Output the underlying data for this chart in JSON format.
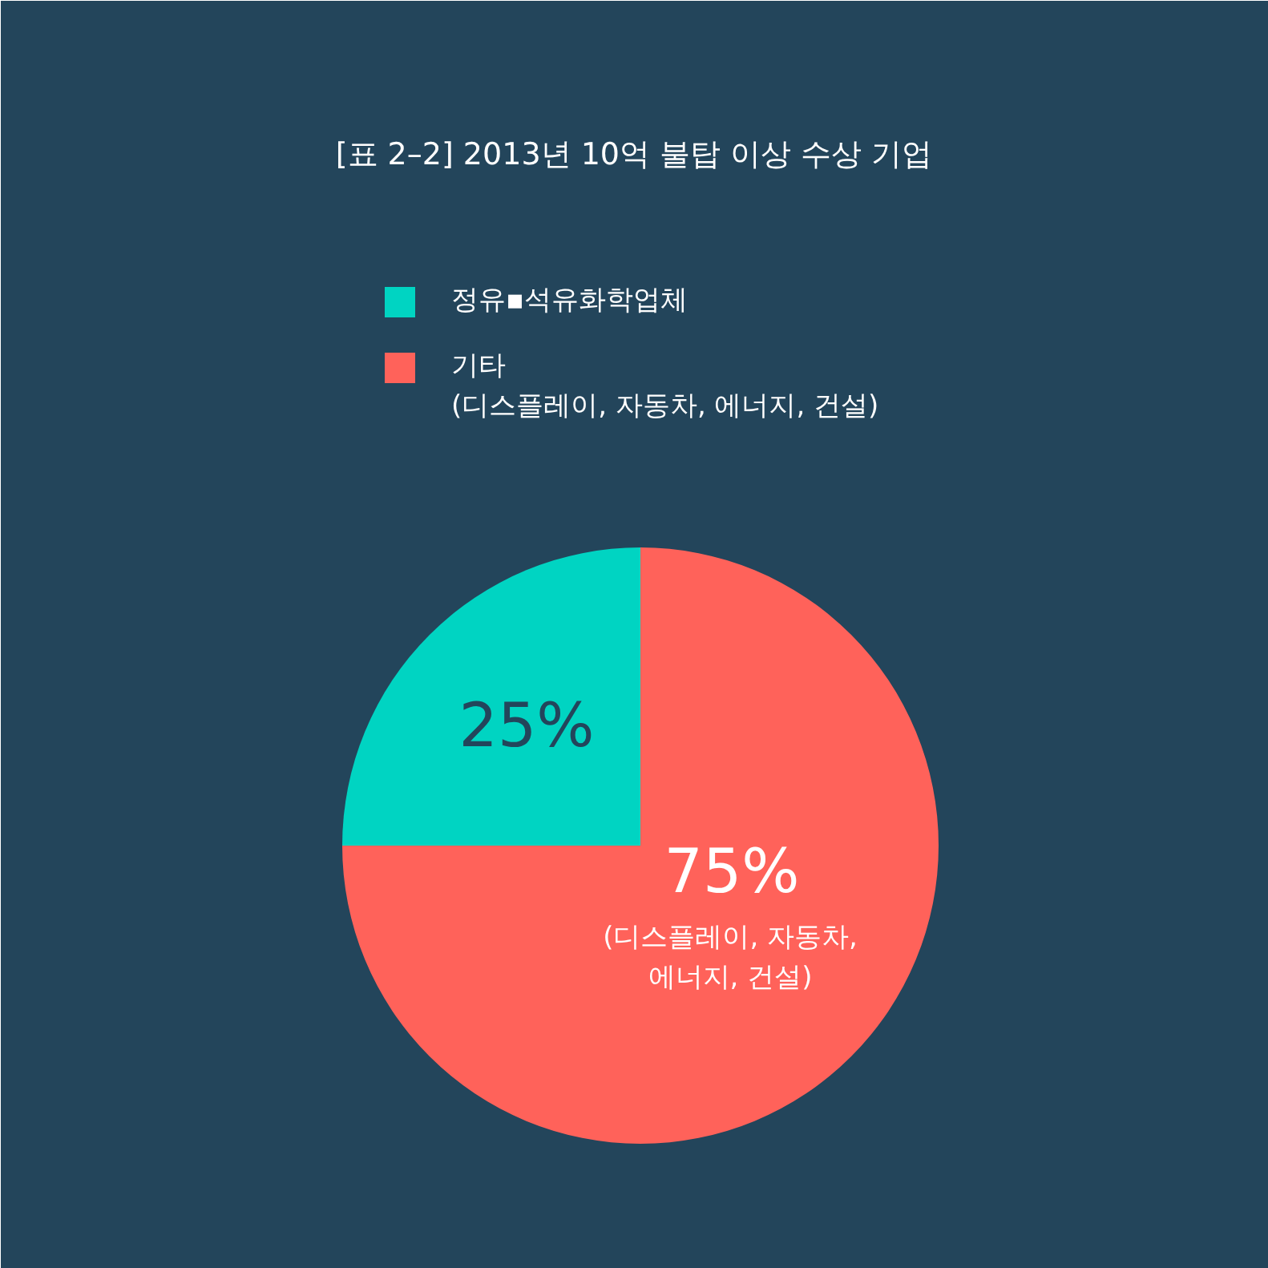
{
  "chart_data": {
    "type": "pie",
    "title": "[표 2–2] 2013년 10억 불탑 이상 수상 기업",
    "categories": [
      "정유▪석유화학업체",
      "기타\n(디스플레이, 자동차, 에너지, 건설)"
    ],
    "values": [
      25,
      75
    ],
    "colors": [
      "#00d4c2",
      "#ff625a"
    ],
    "value_labels": [
      "25%",
      "75%"
    ],
    "legend": "top",
    "annotations": [
      "(디스플레이, 자동차,\n에너지, 건설)"
    ]
  }
}
